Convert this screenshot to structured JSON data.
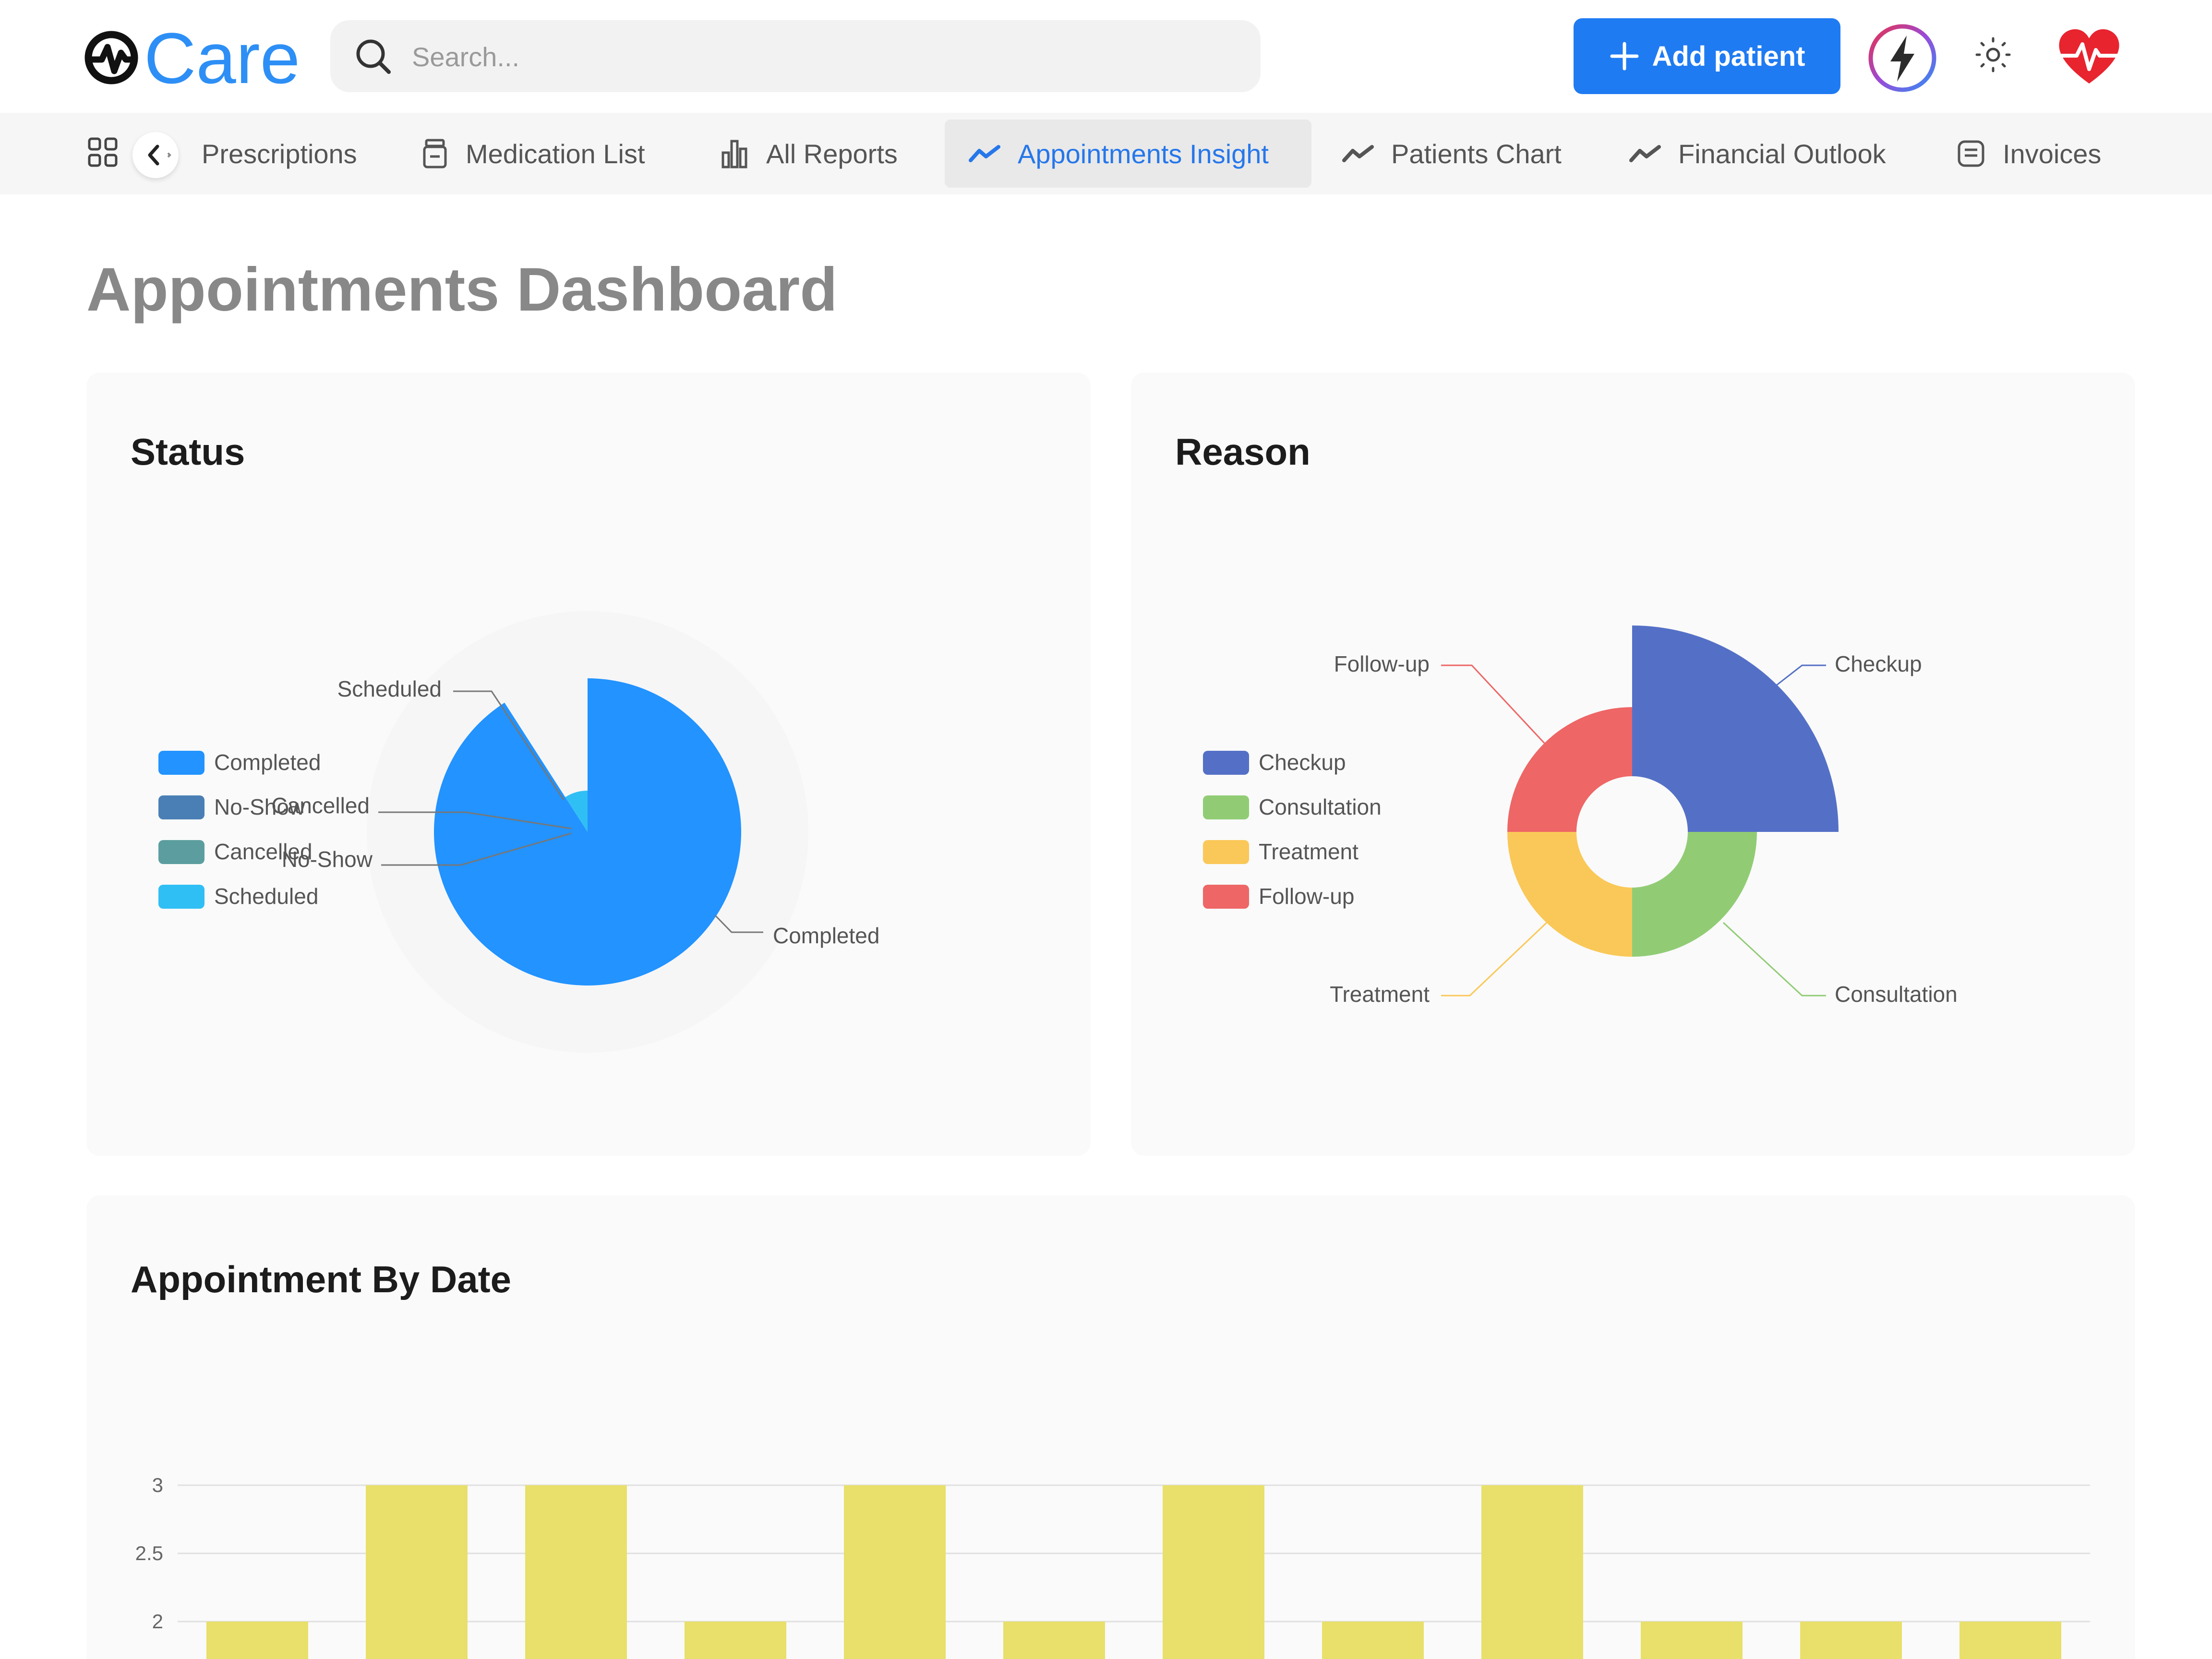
{
  "app": {
    "logo_text": "Care"
  },
  "search": {
    "placeholder": "Search..."
  },
  "header": {
    "add_patient_label": "Add patient"
  },
  "nav": {
    "items": [
      {
        "label": "Prescriptions",
        "icon": "prescription-icon",
        "active": false
      },
      {
        "label": "Medication List",
        "icon": "medication-icon",
        "active": false
      },
      {
        "label": "All Reports",
        "icon": "bar-chart-icon",
        "active": false
      },
      {
        "label": "Appointments Insight",
        "icon": "trend-icon",
        "active": true
      },
      {
        "label": "Patients Chart",
        "icon": "trend-icon",
        "active": false
      },
      {
        "label": "Financial Outlook",
        "icon": "trend-icon",
        "active": false
      },
      {
        "label": "Invoices",
        "icon": "invoice-icon",
        "active": false
      }
    ]
  },
  "page": {
    "title": "Appointments Dashboard"
  },
  "colors": {
    "accent": "#1f7bf2",
    "active_nav": "#2677ea",
    "heart": "#e8242f"
  },
  "chart_data": [
    {
      "type": "pie",
      "title": "Status",
      "variant": "rose",
      "legend": "left",
      "categories": [
        "Completed",
        "No-Show",
        "Cancelled",
        "Scheduled"
      ],
      "values": [
        10,
        0,
        0,
        1
      ],
      "colors": [
        "#2293ff",
        "#4a7fb5",
        "#5c9ea0",
        "#30bff5"
      ]
    },
    {
      "type": "pie",
      "title": "Reason",
      "variant": "rose-donut",
      "legend": "left",
      "categories": [
        "Checkup",
        "Consultation",
        "Treatment",
        "Follow-up"
      ],
      "values": [
        4,
        3,
        3,
        3
      ],
      "colors": [
        "#5470c6",
        "#91cc75",
        "#fac858",
        "#ee6666"
      ]
    },
    {
      "type": "bar",
      "title": "Appointment By Date",
      "values": [
        2,
        3,
        3,
        2,
        3,
        2,
        3,
        2,
        3,
        2,
        2,
        2
      ],
      "yticks": [
        "2",
        "2.5",
        "3"
      ],
      "color": "#e8e06a",
      "grid": true
    }
  ]
}
